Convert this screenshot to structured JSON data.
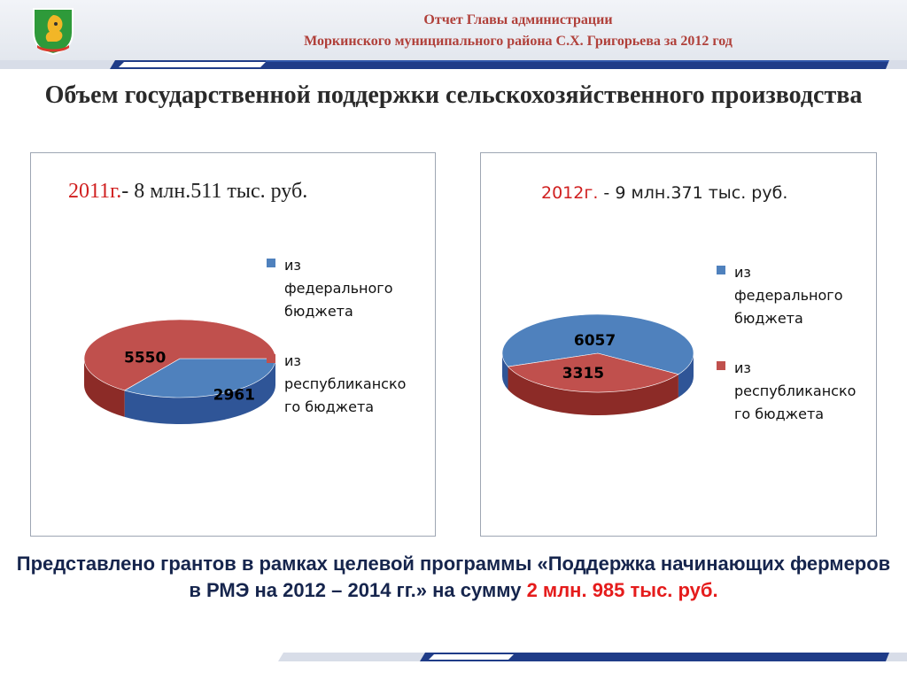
{
  "header": {
    "line1": "Отчет  Главы администрации",
    "line2": "Моркинского муниципального района С.Х. Григорьева за 2012 год"
  },
  "logo": {
    "icon": "emblem-squirrel-icon"
  },
  "title": "Объем государственной поддержки сельскохозяйственного производства",
  "colors": {
    "federal": "#4f81bd",
    "federal_dark": "#2f5597",
    "republican": "#c0504d",
    "republican_dark": "#8c2b27",
    "header_text": "#b0403a",
    "accent_red": "#d01f1f",
    "note_text": "#16254d",
    "stripe_blue": "#1f3c88"
  },
  "panels": [
    {
      "year": "2011г.",
      "rest": "- 8 млн.511 тыс. руб."
    },
    {
      "year": "2012г.",
      "rest": " - 9 млн.371 тыс. руб."
    }
  ],
  "chart_data": [
    {
      "type": "pie",
      "title": "2011г.- 8 млн.511 тыс. руб.",
      "categories": [
        "из федерального бюджета",
        "из республиканского бюджета"
      ],
      "values": [
        2961,
        5550
      ],
      "data_labels": [
        "2961",
        "5550"
      ],
      "legend_placement": "right",
      "legend": [
        "из\nфедерального\nбюджета",
        "из\nреспубликанско\nго бюджета"
      ]
    },
    {
      "type": "pie",
      "title": "2012г. - 9 млн.371 тыс. руб.",
      "categories": [
        "из федерального бюджета",
        "из республиканского бюджета"
      ],
      "values": [
        6057,
        3315
      ],
      "data_labels": [
        "6057",
        "3315"
      ],
      "legend_placement": "right",
      "legend": [
        "из\nфедерального\nбюджета",
        "из\nреспубликанско\nго бюджета"
      ]
    }
  ],
  "note": {
    "text": "Представлено грантов в рамках целевой программы «Поддержка начинающих фермеров в РМЭ на 2012 – 2014 гг.» на сумму ",
    "amount": "2 млн. 985 тыс. руб."
  }
}
